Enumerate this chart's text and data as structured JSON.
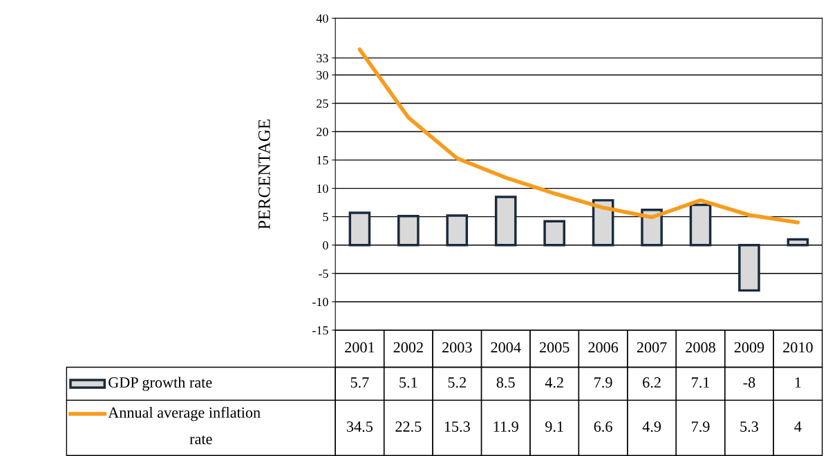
{
  "chart_data": {
    "type": "bar",
    "ylabel": "PERCENTAGE",
    "categories": [
      "2001",
      "2002",
      "2003",
      "2004",
      "2005",
      "2006",
      "2007",
      "2008",
      "2009",
      "2010"
    ],
    "series": [
      {
        "name": "GDP growth rate",
        "color": "#d9d9d9",
        "values": [
          5.7,
          5.1,
          5.2,
          8.5,
          4.2,
          7.9,
          6.2,
          7.1,
          -8,
          1
        ]
      },
      {
        "name": "Annual average inflation rate",
        "type": "line",
        "color": "#f79c1e",
        "values": [
          34.5,
          22.5,
          15.3,
          11.9,
          9.1,
          6.6,
          4.9,
          7.9,
          5.3,
          4
        ]
      }
    ],
    "ylim": [
      -15,
      40
    ],
    "yticks": [
      -15,
      -10,
      -5,
      0,
      5,
      10,
      15,
      20,
      25,
      30,
      33,
      40
    ],
    "grid": "y",
    "legend": "bottom",
    "data_labels": true,
    "marker": "none",
    "line_style": "solid"
  }
}
